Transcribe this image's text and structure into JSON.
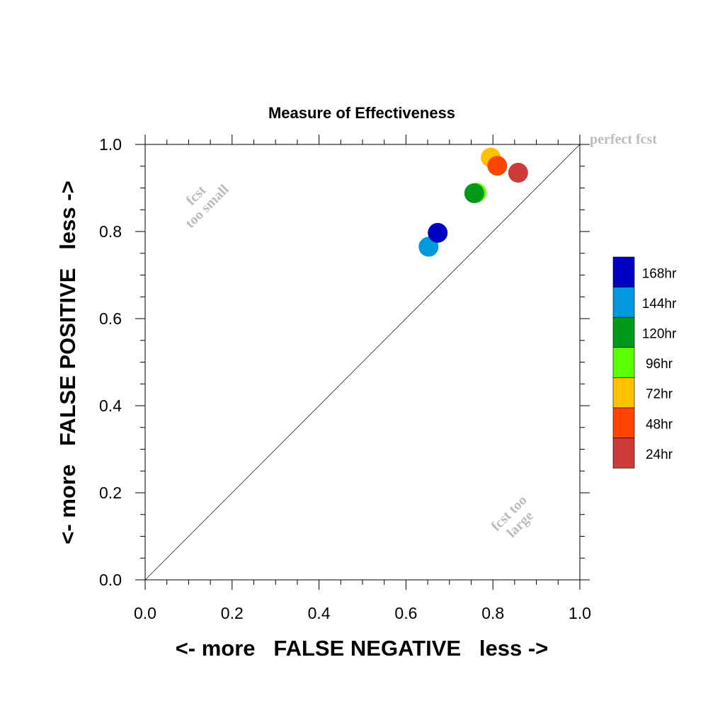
{
  "chart_data": {
    "type": "scatter",
    "title": "Measure of Effectiveness",
    "xlabel": "<- more   FALSE NEGATIVE   less ->",
    "ylabel": "<- more   FALSE POSITIVE   less ->",
    "xlim": [
      0.0,
      1.0
    ],
    "ylim": [
      0.0,
      1.0
    ],
    "xticks": [
      "0.0",
      "0.2",
      "0.4",
      "0.6",
      "0.8",
      "1.0"
    ],
    "yticks": [
      "0.0",
      "0.2",
      "0.4",
      "0.6",
      "0.8",
      "1.0"
    ],
    "grid": false,
    "reference_line": {
      "from": [
        0,
        0
      ],
      "to": [
        1,
        1
      ],
      "label": "perfect fcst"
    },
    "annotations": [
      {
        "lines": [
          "fcst",
          "too small"
        ],
        "x": 0.13,
        "y": 0.87
      },
      {
        "lines": [
          "fcst too",
          "large"
        ],
        "x": 0.85,
        "y": 0.14
      }
    ],
    "legend_position": "right",
    "series": [
      {
        "name": "168hr",
        "color": "#0000c0",
        "x": 0.673,
        "y": 0.797
      },
      {
        "name": "144hr",
        "color": "#0099dd",
        "x": 0.652,
        "y": 0.765
      },
      {
        "name": "120hr",
        "color": "#009a1a",
        "x": 0.757,
        "y": 0.888
      },
      {
        "name": "96hr",
        "color": "#5aff00",
        "x": 0.762,
        "y": 0.889
      },
      {
        "name": "72hr",
        "color": "#ffc000",
        "x": 0.795,
        "y": 0.97
      },
      {
        "name": "48hr",
        "color": "#ff4500",
        "x": 0.81,
        "y": 0.951
      },
      {
        "name": "24hr",
        "color": "#cc3a3a",
        "x": 0.858,
        "y": 0.935
      }
    ]
  }
}
